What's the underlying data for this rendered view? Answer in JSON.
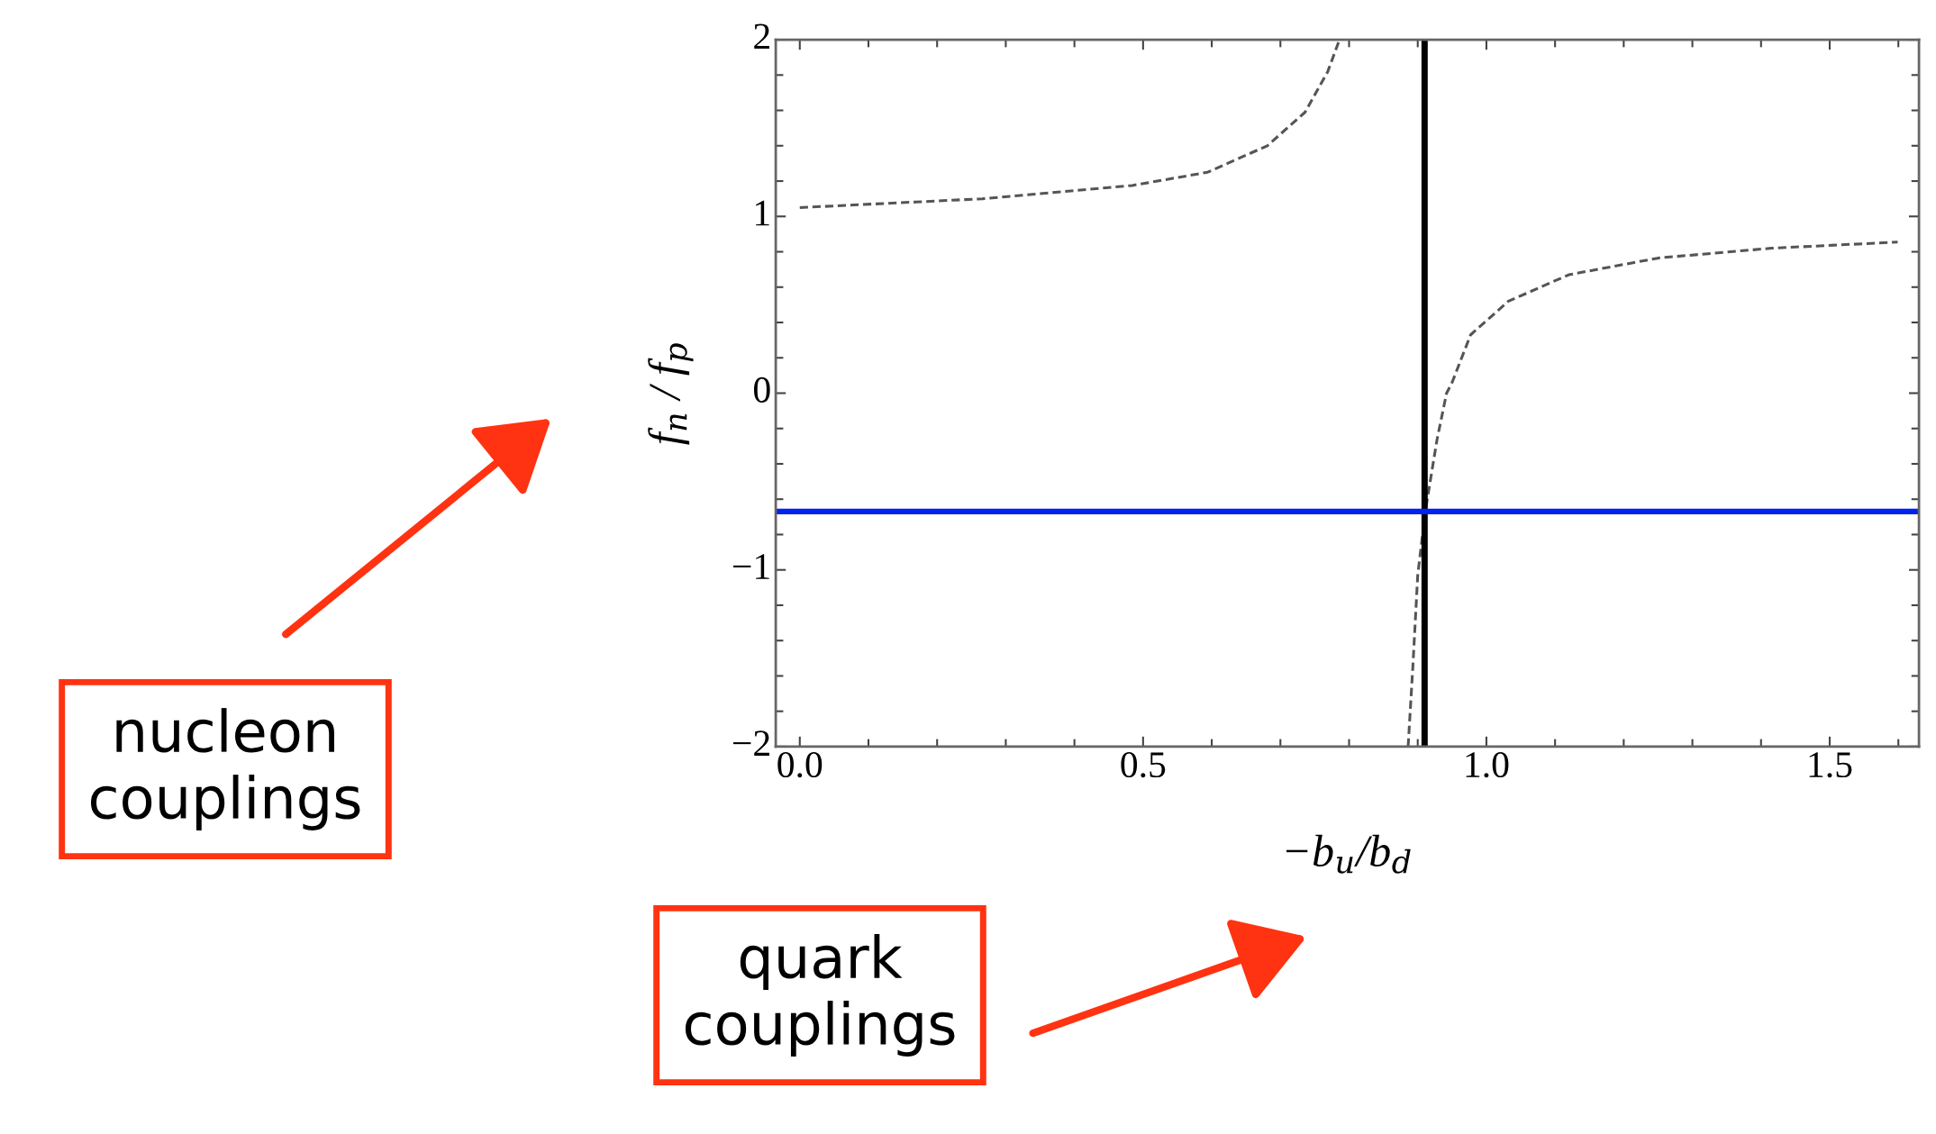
{
  "chart_data": {
    "type": "line",
    "xlabel": "−b$_{u}$/b$_{d}$",
    "ylabel": "f$_{n}$ / f$_{p}$",
    "xlim": [
      -0.035,
      1.63
    ],
    "ylim": [
      -2,
      2
    ],
    "xticks": [
      {
        "value": 0,
        "label": "0.0"
      },
      {
        "value": 0.5,
        "label": "0.5"
      },
      {
        "value": 1,
        "label": "1.0"
      },
      {
        "value": 1.5,
        "label": "1.5"
      }
    ],
    "yticks": [
      -2,
      -1,
      0,
      1,
      2
    ],
    "grid": false,
    "line_style": "dashed",
    "marker": "none",
    "series": [
      {
        "color": "#555555",
        "x": [
          0.0,
          0.266,
          0.484,
          0.594,
          0.681,
          0.736,
          0.769,
          0.786
        ],
        "values": [
          1.05,
          1.1,
          1.175,
          1.25,
          1.4,
          1.59,
          1.82,
          2.0
        ]
      },
      {
        "color": "#555555",
        "x": [
          0.886,
          0.893,
          0.9,
          0.911,
          0.928,
          0.942,
          0.95,
          0.977,
          1.032,
          1.12,
          1.251,
          1.415,
          1.599
        ],
        "values": [
          -2.0,
          -1.54,
          -1.03,
          -0.67,
          -0.265,
          0.0,
          0.06,
          0.33,
          0.52,
          0.67,
          0.765,
          0.82,
          0.855
        ]
      }
    ],
    "ref_lines": [
      {
        "axis": "x",
        "value": 0.91,
        "color": "#000000"
      },
      {
        "axis": "y",
        "value": -0.67,
        "color": "#0022ee"
      }
    ],
    "annotations": [
      "nucleon couplings",
      "quark couplings"
    ]
  }
}
